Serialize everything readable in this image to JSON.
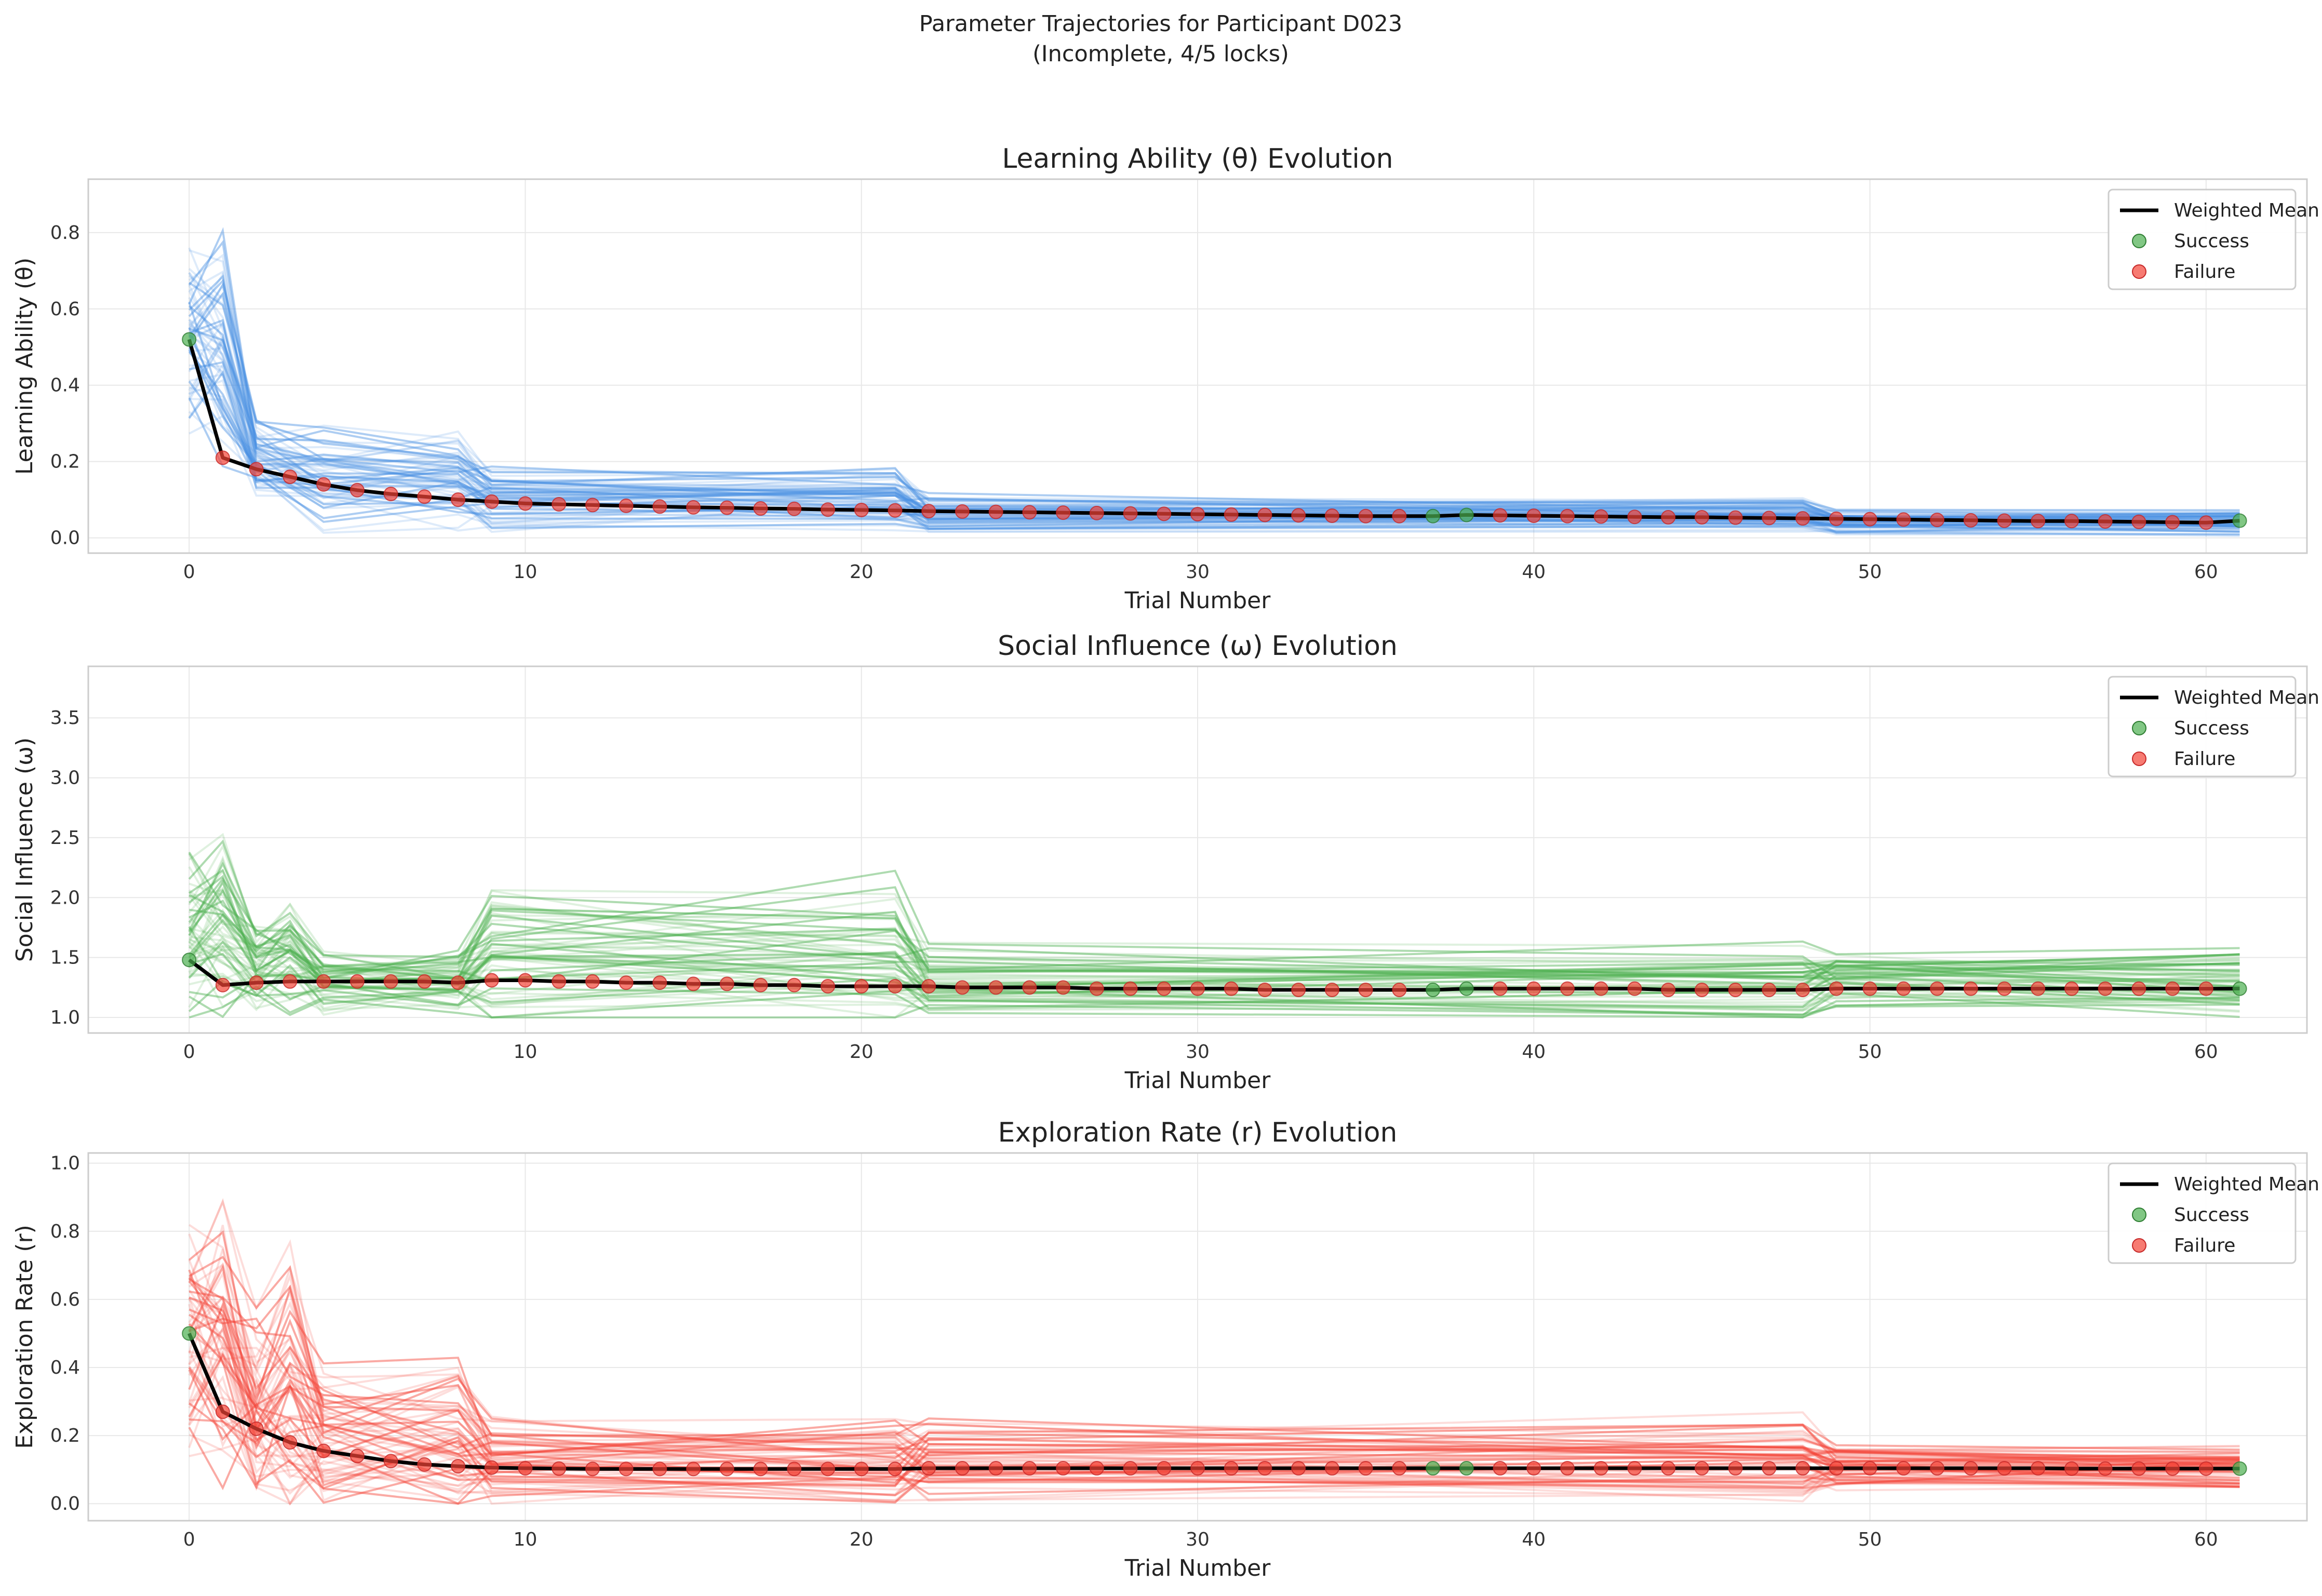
{
  "figure": {
    "title_line1": "Parameter Trajectories for Participant D023",
    "title_line2": "(Incomplete, 4/5 locks)"
  },
  "legend": {
    "mean_label": "Weighted Mean",
    "success_label": "Success",
    "failure_label": "Failure"
  },
  "colors": {
    "success": "#4caf50",
    "failure": "#f44336",
    "mean": "#000000",
    "grid": "#e8e8e8",
    "axis_frame": "#cccccc"
  },
  "chart_data": [
    {
      "type": "line",
      "title": "Learning Ability (θ) Evolution",
      "xlabel": "Trial Number",
      "ylabel": "Learning Ability (θ)",
      "xlim": [
        -3,
        63
      ],
      "ylim": [
        -0.04,
        0.94
      ],
      "xticks": [
        "0",
        "10",
        "20",
        "30",
        "40",
        "50",
        "60"
      ],
      "yticks": [
        "0.0",
        "0.2",
        "0.4",
        "0.6",
        "0.8"
      ],
      "particle_color": "#4a90e2",
      "grid": true,
      "legend_position": "upper right",
      "weighted_mean": {
        "x": [
          0,
          1,
          2,
          3,
          4,
          5,
          6,
          7,
          8,
          9,
          10,
          11,
          12,
          13,
          14,
          15,
          16,
          17,
          18,
          19,
          20,
          21,
          22,
          23,
          24,
          25,
          26,
          27,
          28,
          29,
          30,
          31,
          32,
          33,
          34,
          35,
          36,
          37,
          38,
          39,
          40,
          41,
          42,
          43,
          44,
          45,
          46,
          47,
          48,
          49,
          50,
          51,
          52,
          53,
          54,
          55,
          56,
          57,
          58,
          59,
          60,
          61
        ],
        "y": [
          0.52,
          0.21,
          0.18,
          0.16,
          0.14,
          0.125,
          0.115,
          0.108,
          0.1,
          0.095,
          0.09,
          0.088,
          0.086,
          0.084,
          0.082,
          0.08,
          0.079,
          0.077,
          0.076,
          0.074,
          0.073,
          0.072,
          0.07,
          0.069,
          0.068,
          0.067,
          0.066,
          0.065,
          0.064,
          0.063,
          0.062,
          0.061,
          0.06,
          0.059,
          0.058,
          0.057,
          0.057,
          0.057,
          0.06,
          0.059,
          0.058,
          0.057,
          0.056,
          0.055,
          0.054,
          0.054,
          0.053,
          0.052,
          0.051,
          0.05,
          0.049,
          0.048,
          0.047,
          0.046,
          0.045,
          0.044,
          0.044,
          0.043,
          0.042,
          0.041,
          0.04,
          0.045
        ]
      },
      "outcome_points": {
        "x": [
          0,
          1,
          2,
          3,
          4,
          5,
          6,
          7,
          8,
          9,
          10,
          11,
          12,
          13,
          14,
          15,
          16,
          17,
          18,
          19,
          20,
          21,
          22,
          23,
          24,
          25,
          26,
          27,
          28,
          29,
          30,
          31,
          32,
          33,
          34,
          35,
          36,
          37,
          38,
          39,
          40,
          41,
          42,
          43,
          44,
          45,
          46,
          47,
          48,
          49,
          50,
          51,
          52,
          53,
          54,
          55,
          56,
          57,
          58,
          59,
          60,
          61
        ],
        "y": [
          0.52,
          0.21,
          0.18,
          0.16,
          0.14,
          0.125,
          0.115,
          0.108,
          0.1,
          0.095,
          0.09,
          0.088,
          0.086,
          0.084,
          0.082,
          0.08,
          0.079,
          0.077,
          0.076,
          0.074,
          0.073,
          0.072,
          0.07,
          0.069,
          0.068,
          0.067,
          0.066,
          0.065,
          0.064,
          0.063,
          0.062,
          0.061,
          0.06,
          0.059,
          0.058,
          0.057,
          0.057,
          0.057,
          0.06,
          0.059,
          0.058,
          0.057,
          0.056,
          0.055,
          0.054,
          0.054,
          0.053,
          0.052,
          0.051,
          0.05,
          0.049,
          0.048,
          0.047,
          0.046,
          0.045,
          0.044,
          0.044,
          0.043,
          0.042,
          0.041,
          0.04,
          0.045
        ],
        "outcome": [
          "S",
          "F",
          "F",
          "F",
          "F",
          "F",
          "F",
          "F",
          "F",
          "F",
          "F",
          "F",
          "F",
          "F",
          "F",
          "F",
          "F",
          "F",
          "F",
          "F",
          "F",
          "F",
          "F",
          "F",
          "F",
          "F",
          "F",
          "F",
          "F",
          "F",
          "F",
          "F",
          "F",
          "F",
          "F",
          "F",
          "F",
          "S",
          "S",
          "F",
          "F",
          "F",
          "F",
          "F",
          "F",
          "F",
          "F",
          "F",
          "F",
          "F",
          "F",
          "F",
          "F",
          "F",
          "F",
          "F",
          "F",
          "F",
          "F",
          "F",
          "F",
          "S"
        ]
      },
      "particle_band": {
        "breakpoints": [
          0,
          1,
          2,
          4,
          8,
          9,
          21,
          22,
          48,
          49,
          61
        ],
        "center": [
          0.5,
          0.5,
          0.2,
          0.15,
          0.15,
          0.1,
          0.1,
          0.06,
          0.06,
          0.04,
          0.04
        ],
        "spread": [
          0.3,
          0.35,
          0.12,
          0.16,
          0.14,
          0.1,
          0.1,
          0.06,
          0.05,
          0.04,
          0.04
        ],
        "min": 0.0
      }
    },
    {
      "type": "line",
      "title": "Social Influence (ω) Evolution",
      "xlabel": "Trial Number",
      "ylabel": "Social Influence (ω)",
      "xlim": [
        -3,
        63
      ],
      "ylim": [
        0.87,
        3.93
      ],
      "xticks": [
        "0",
        "10",
        "20",
        "30",
        "40",
        "50",
        "60"
      ],
      "yticks": [
        "1.0",
        "1.5",
        "2.0",
        "2.5",
        "3.0",
        "3.5"
      ],
      "particle_color": "#4caf50",
      "grid": true,
      "legend_position": "upper right",
      "weighted_mean": {
        "x": [
          0,
          1,
          2,
          3,
          4,
          5,
          6,
          7,
          8,
          9,
          10,
          11,
          12,
          13,
          14,
          15,
          16,
          17,
          18,
          19,
          20,
          21,
          22,
          23,
          24,
          25,
          26,
          27,
          28,
          29,
          30,
          31,
          32,
          33,
          34,
          35,
          36,
          37,
          38,
          39,
          40,
          41,
          42,
          43,
          44,
          45,
          46,
          47,
          48,
          49,
          50,
          51,
          52,
          53,
          54,
          55,
          56,
          57,
          58,
          59,
          60,
          61
        ],
        "y": [
          1.48,
          1.27,
          1.29,
          1.3,
          1.3,
          1.3,
          1.3,
          1.3,
          1.29,
          1.31,
          1.31,
          1.3,
          1.3,
          1.29,
          1.29,
          1.28,
          1.28,
          1.27,
          1.27,
          1.26,
          1.26,
          1.26,
          1.26,
          1.25,
          1.25,
          1.25,
          1.25,
          1.24,
          1.24,
          1.24,
          1.24,
          1.24,
          1.23,
          1.23,
          1.23,
          1.23,
          1.23,
          1.23,
          1.24,
          1.24,
          1.24,
          1.24,
          1.24,
          1.24,
          1.23,
          1.23,
          1.23,
          1.23,
          1.23,
          1.24,
          1.24,
          1.24,
          1.24,
          1.24,
          1.24,
          1.24,
          1.24,
          1.24,
          1.24,
          1.24,
          1.24,
          1.24
        ]
      },
      "outcome_points": {
        "x": [
          0,
          1,
          2,
          3,
          4,
          5,
          6,
          7,
          8,
          9,
          10,
          11,
          12,
          13,
          14,
          15,
          16,
          17,
          18,
          19,
          20,
          21,
          22,
          23,
          24,
          25,
          26,
          27,
          28,
          29,
          30,
          31,
          32,
          33,
          34,
          35,
          36,
          37,
          38,
          39,
          40,
          41,
          42,
          43,
          44,
          45,
          46,
          47,
          48,
          49,
          50,
          51,
          52,
          53,
          54,
          55,
          56,
          57,
          58,
          59,
          60,
          61
        ],
        "y": [
          1.48,
          1.27,
          1.29,
          1.3,
          1.3,
          1.3,
          1.3,
          1.3,
          1.29,
          1.31,
          1.31,
          1.3,
          1.3,
          1.29,
          1.29,
          1.28,
          1.28,
          1.27,
          1.27,
          1.26,
          1.26,
          1.26,
          1.26,
          1.25,
          1.25,
          1.25,
          1.25,
          1.24,
          1.24,
          1.24,
          1.24,
          1.24,
          1.23,
          1.23,
          1.23,
          1.23,
          1.23,
          1.23,
          1.24,
          1.24,
          1.24,
          1.24,
          1.24,
          1.24,
          1.23,
          1.23,
          1.23,
          1.23,
          1.23,
          1.24,
          1.24,
          1.24,
          1.24,
          1.24,
          1.24,
          1.24,
          1.24,
          1.24,
          1.24,
          1.24,
          1.24,
          1.24
        ],
        "outcome": [
          "S",
          "F",
          "F",
          "F",
          "F",
          "F",
          "F",
          "F",
          "F",
          "F",
          "F",
          "F",
          "F",
          "F",
          "F",
          "F",
          "F",
          "F",
          "F",
          "F",
          "F",
          "F",
          "F",
          "F",
          "F",
          "F",
          "F",
          "F",
          "F",
          "F",
          "F",
          "F",
          "F",
          "F",
          "F",
          "F",
          "F",
          "S",
          "S",
          "F",
          "F",
          "F",
          "F",
          "F",
          "F",
          "F",
          "F",
          "F",
          "F",
          "F",
          "F",
          "F",
          "F",
          "F",
          "F",
          "F",
          "F",
          "F",
          "F",
          "F",
          "F",
          "S"
        ]
      },
      "particle_band": {
        "breakpoints": [
          0,
          1,
          2,
          3,
          4,
          8,
          9,
          21,
          22,
          48,
          49,
          61
        ],
        "center": [
          1.7,
          1.7,
          1.4,
          1.5,
          1.3,
          1.3,
          1.5,
          1.5,
          1.3,
          1.3,
          1.3,
          1.3
        ],
        "spread": [
          0.8,
          0.9,
          0.4,
          0.5,
          0.3,
          0.3,
          0.8,
          0.8,
          0.35,
          0.35,
          0.3,
          0.3
        ],
        "min": 1.0
      }
    },
    {
      "type": "line",
      "title": "Exploration Rate (r) Evolution",
      "xlabel": "Trial Number",
      "ylabel": "Exploration Rate (r)",
      "xlim": [
        -3,
        63
      ],
      "ylim": [
        -0.05,
        1.03
      ],
      "xticks": [
        "0",
        "10",
        "20",
        "30",
        "40",
        "50",
        "60"
      ],
      "yticks": [
        "0.0",
        "0.2",
        "0.4",
        "0.6",
        "0.8",
        "1.0"
      ],
      "particle_color": "#f44336",
      "grid": true,
      "legend_position": "upper right",
      "weighted_mean": {
        "x": [
          0,
          1,
          2,
          3,
          4,
          5,
          6,
          7,
          8,
          9,
          10,
          11,
          12,
          13,
          14,
          15,
          16,
          17,
          18,
          19,
          20,
          21,
          22,
          23,
          24,
          25,
          26,
          27,
          28,
          29,
          30,
          31,
          32,
          33,
          34,
          35,
          36,
          37,
          38,
          39,
          40,
          41,
          42,
          43,
          44,
          45,
          46,
          47,
          48,
          49,
          50,
          51,
          52,
          53,
          54,
          55,
          56,
          57,
          58,
          59,
          60,
          61
        ],
        "y": [
          0.5,
          0.27,
          0.22,
          0.18,
          0.155,
          0.14,
          0.125,
          0.115,
          0.11,
          0.106,
          0.104,
          0.103,
          0.102,
          0.102,
          0.102,
          0.102,
          0.102,
          0.102,
          0.102,
          0.102,
          0.102,
          0.102,
          0.104,
          0.104,
          0.104,
          0.104,
          0.104,
          0.104,
          0.104,
          0.104,
          0.104,
          0.104,
          0.104,
          0.104,
          0.104,
          0.104,
          0.104,
          0.104,
          0.104,
          0.104,
          0.104,
          0.104,
          0.104,
          0.104,
          0.104,
          0.104,
          0.104,
          0.104,
          0.104,
          0.104,
          0.104,
          0.104,
          0.104,
          0.104,
          0.104,
          0.104,
          0.103,
          0.103,
          0.103,
          0.103,
          0.103,
          0.103
        ]
      },
      "outcome_points": {
        "x": [
          0,
          1,
          2,
          3,
          4,
          5,
          6,
          7,
          8,
          9,
          10,
          11,
          12,
          13,
          14,
          15,
          16,
          17,
          18,
          19,
          20,
          21,
          22,
          23,
          24,
          25,
          26,
          27,
          28,
          29,
          30,
          31,
          32,
          33,
          34,
          35,
          36,
          37,
          38,
          39,
          40,
          41,
          42,
          43,
          44,
          45,
          46,
          47,
          48,
          49,
          50,
          51,
          52,
          53,
          54,
          55,
          56,
          57,
          58,
          59,
          60,
          61
        ],
        "y": [
          0.5,
          0.27,
          0.22,
          0.18,
          0.155,
          0.14,
          0.125,
          0.115,
          0.11,
          0.106,
          0.104,
          0.103,
          0.102,
          0.102,
          0.102,
          0.102,
          0.102,
          0.102,
          0.102,
          0.102,
          0.102,
          0.102,
          0.104,
          0.104,
          0.104,
          0.104,
          0.104,
          0.104,
          0.104,
          0.104,
          0.104,
          0.104,
          0.104,
          0.104,
          0.104,
          0.104,
          0.104,
          0.104,
          0.104,
          0.104,
          0.104,
          0.104,
          0.104,
          0.104,
          0.104,
          0.104,
          0.104,
          0.104,
          0.104,
          0.104,
          0.104,
          0.104,
          0.104,
          0.104,
          0.104,
          0.104,
          0.103,
          0.103,
          0.103,
          0.103,
          0.103,
          0.103
        ],
        "outcome": [
          "S",
          "F",
          "F",
          "F",
          "F",
          "F",
          "F",
          "F",
          "F",
          "F",
          "F",
          "F",
          "F",
          "F",
          "F",
          "F",
          "F",
          "F",
          "F",
          "F",
          "F",
          "F",
          "F",
          "F",
          "F",
          "F",
          "F",
          "F",
          "F",
          "F",
          "F",
          "F",
          "F",
          "F",
          "F",
          "F",
          "F",
          "S",
          "S",
          "F",
          "F",
          "F",
          "F",
          "F",
          "F",
          "F",
          "F",
          "F",
          "F",
          "F",
          "F",
          "F",
          "F",
          "F",
          "F",
          "F",
          "F",
          "F",
          "F",
          "F",
          "F",
          "S"
        ]
      },
      "particle_band": {
        "breakpoints": [
          0,
          1,
          2,
          3,
          4,
          8,
          9,
          21,
          22,
          48,
          49,
          61
        ],
        "center": [
          0.5,
          0.5,
          0.3,
          0.35,
          0.2,
          0.2,
          0.13,
          0.13,
          0.13,
          0.13,
          0.11,
          0.11
        ],
        "spread": [
          0.45,
          0.5,
          0.3,
          0.45,
          0.25,
          0.25,
          0.15,
          0.15,
          0.15,
          0.15,
          0.08,
          0.08
        ],
        "min": 0.0
      }
    }
  ]
}
